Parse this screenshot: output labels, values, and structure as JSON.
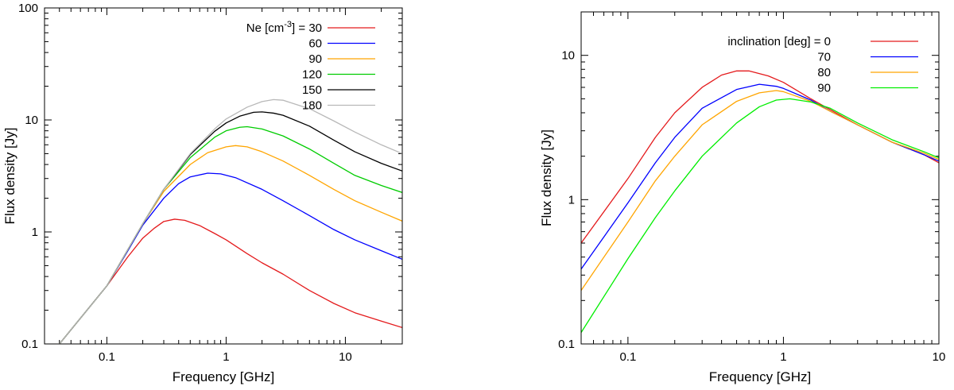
{
  "chart_data": [
    {
      "type": "line",
      "xscale": "log",
      "yscale": "log",
      "xlabel": "Frequency [GHz]",
      "ylabel": "Flux density [Jy]",
      "xlim": [
        0.03,
        30
      ],
      "ylim": [
        0.1,
        100
      ],
      "xticks": [
        {
          "v": 0.1,
          "label": "0.1"
        },
        {
          "v": 1,
          "label": "1"
        },
        {
          "v": 10,
          "label": "10"
        }
      ],
      "yticks": [
        {
          "v": 0.1,
          "label": "0.1"
        },
        {
          "v": 1,
          "label": "1"
        },
        {
          "v": 10,
          "label": "10"
        },
        {
          "v": 100,
          "label": "100"
        }
      ],
      "legend": {
        "prefix": "Ne [cm",
        "sup": "-3",
        "suffix": "] = ",
        "placement": "top-right"
      },
      "series": [
        {
          "name": "30",
          "color": "#e41a1c",
          "points": [
            [
              0.04,
              0.1
            ],
            [
              0.1,
              0.33
            ],
            [
              0.15,
              0.6
            ],
            [
              0.2,
              0.88
            ],
            [
              0.25,
              1.08
            ],
            [
              0.3,
              1.24
            ],
            [
              0.37,
              1.3
            ],
            [
              0.45,
              1.27
            ],
            [
              0.6,
              1.14
            ],
            [
              0.8,
              0.97
            ],
            [
              1,
              0.85
            ],
            [
              1.5,
              0.64
            ],
            [
              2,
              0.53
            ],
            [
              3,
              0.42
            ],
            [
              5,
              0.3
            ],
            [
              8,
              0.23
            ],
            [
              12,
              0.19
            ],
            [
              20,
              0.16
            ],
            [
              30,
              0.14
            ]
          ]
        },
        {
          "name": "60",
          "color": "#0000ff",
          "points": [
            [
              0.04,
              0.1
            ],
            [
              0.1,
              0.33
            ],
            [
              0.15,
              0.68
            ],
            [
              0.2,
              1.15
            ],
            [
              0.3,
              2.0
            ],
            [
              0.4,
              2.7
            ],
            [
              0.5,
              3.1
            ],
            [
              0.7,
              3.35
            ],
            [
              0.9,
              3.3
            ],
            [
              1.2,
              3.05
            ],
            [
              2,
              2.4
            ],
            [
              3,
              1.9
            ],
            [
              5,
              1.4
            ],
            [
              8,
              1.05
            ],
            [
              12,
              0.85
            ],
            [
              20,
              0.68
            ],
            [
              30,
              0.57
            ]
          ]
        },
        {
          "name": "90",
          "color": "#ffa500",
          "points": [
            [
              0.04,
              0.1
            ],
            [
              0.1,
              0.33
            ],
            [
              0.2,
              1.18
            ],
            [
              0.3,
              2.3
            ],
            [
              0.5,
              4.0
            ],
            [
              0.7,
              5.1
            ],
            [
              1,
              5.75
            ],
            [
              1.2,
              5.9
            ],
            [
              1.5,
              5.75
            ],
            [
              2,
              5.2
            ],
            [
              3,
              4.3
            ],
            [
              5,
              3.2
            ],
            [
              8,
              2.4
            ],
            [
              12,
              1.9
            ],
            [
              20,
              1.5
            ],
            [
              30,
              1.25
            ]
          ]
        },
        {
          "name": "120",
          "color": "#00cc00",
          "points": [
            [
              0.04,
              0.1
            ],
            [
              0.1,
              0.33
            ],
            [
              0.2,
              1.18
            ],
            [
              0.3,
              2.4
            ],
            [
              0.5,
              4.6
            ],
            [
              0.8,
              7.0
            ],
            [
              1,
              8.0
            ],
            [
              1.3,
              8.6
            ],
            [
              1.5,
              8.7
            ],
            [
              2,
              8.3
            ],
            [
              3,
              7.2
            ],
            [
              5,
              5.5
            ],
            [
              8,
              4.1
            ],
            [
              12,
              3.2
            ],
            [
              20,
              2.6
            ],
            [
              30,
              2.25
            ]
          ]
        },
        {
          "name": "150",
          "color": "#000000",
          "points": [
            [
              0.04,
              0.1
            ],
            [
              0.1,
              0.33
            ],
            [
              0.2,
              1.18
            ],
            [
              0.3,
              2.4
            ],
            [
              0.5,
              4.9
            ],
            [
              0.8,
              7.9
            ],
            [
              1,
              9.4
            ],
            [
              1.3,
              10.8
            ],
            [
              1.7,
              11.7
            ],
            [
              2,
              11.8
            ],
            [
              2.5,
              11.5
            ],
            [
              3,
              11.0
            ],
            [
              5,
              8.8
            ],
            [
              8,
              6.6
            ],
            [
              12,
              5.2
            ],
            [
              20,
              4.1
            ],
            [
              30,
              3.5
            ]
          ]
        },
        {
          "name": "180",
          "color": "#b8b8b8",
          "points": [
            [
              0.04,
              0.1
            ],
            [
              0.1,
              0.33
            ],
            [
              0.2,
              1.18
            ],
            [
              0.3,
              2.4
            ],
            [
              0.5,
              5.0
            ],
            [
              0.8,
              8.3
            ],
            [
              1,
              10.2
            ],
            [
              1.5,
              13.0
            ],
            [
              2,
              14.6
            ],
            [
              2.5,
              15.2
            ],
            [
              3,
              15.0
            ],
            [
              5,
              12.6
            ],
            [
              8,
              9.8
            ],
            [
              12,
              7.8
            ],
            [
              20,
              6.0
            ],
            [
              30,
              5.0
            ]
          ]
        }
      ]
    },
    {
      "type": "line",
      "xscale": "log",
      "yscale": "log",
      "xlabel": "Frequency [GHz]",
      "ylabel": "Flux density [Jy]",
      "xlim": [
        0.05,
        10
      ],
      "ylim": [
        0.1,
        20
      ],
      "xticks": [
        {
          "v": 0.1,
          "label": "0.1"
        },
        {
          "v": 1,
          "label": "1"
        },
        {
          "v": 10,
          "label": "10"
        }
      ],
      "yticks": [
        {
          "v": 0.1,
          "label": "0.1"
        },
        {
          "v": 1,
          "label": "1"
        },
        {
          "v": 10,
          "label": "10"
        }
      ],
      "legend": {
        "prefix": "inclination [deg] = ",
        "sup": "",
        "suffix": "",
        "placement": "top-right"
      },
      "series": [
        {
          "name": "0",
          "color": "#e41a1c",
          "points": [
            [
              0.05,
              0.5
            ],
            [
              0.1,
              1.4
            ],
            [
              0.15,
              2.7
            ],
            [
              0.2,
              4.0
            ],
            [
              0.3,
              6.0
            ],
            [
              0.4,
              7.3
            ],
            [
              0.5,
              7.8
            ],
            [
              0.6,
              7.8
            ],
            [
              0.8,
              7.2
            ],
            [
              1,
              6.5
            ],
            [
              1.5,
              5.0
            ],
            [
              2,
              4.2
            ],
            [
              3,
              3.3
            ],
            [
              5,
              2.5
            ],
            [
              8,
              2.05
            ],
            [
              10,
              1.8
            ]
          ]
        },
        {
          "name": "70",
          "color": "#0000ff",
          "points": [
            [
              0.05,
              0.33
            ],
            [
              0.1,
              0.95
            ],
            [
              0.15,
              1.8
            ],
            [
              0.2,
              2.7
            ],
            [
              0.3,
              4.3
            ],
            [
              0.5,
              5.8
            ],
            [
              0.7,
              6.3
            ],
            [
              0.9,
              6.1
            ],
            [
              1,
              5.9
            ],
            [
              1.5,
              4.9
            ],
            [
              2,
              4.1
            ],
            [
              3,
              3.3
            ],
            [
              5,
              2.5
            ],
            [
              8,
              2.05
            ],
            [
              10,
              1.85
            ]
          ]
        },
        {
          "name": "80",
          "color": "#ffa500",
          "points": [
            [
              0.05,
              0.235
            ],
            [
              0.1,
              0.7
            ],
            [
              0.15,
              1.35
            ],
            [
              0.2,
              2.0
            ],
            [
              0.3,
              3.3
            ],
            [
              0.5,
              4.8
            ],
            [
              0.7,
              5.5
            ],
            [
              0.9,
              5.7
            ],
            [
              1,
              5.6
            ],
            [
              1.5,
              4.8
            ],
            [
              2,
              4.1
            ],
            [
              3,
              3.3
            ],
            [
              5,
              2.5
            ],
            [
              8,
              2.1
            ],
            [
              10,
              1.9
            ]
          ]
        },
        {
          "name": "90",
          "color": "#00ee00",
          "points": [
            [
              0.05,
              0.12
            ],
            [
              0.1,
              0.39
            ],
            [
              0.15,
              0.75
            ],
            [
              0.2,
              1.15
            ],
            [
              0.3,
              2.0
            ],
            [
              0.5,
              3.4
            ],
            [
              0.7,
              4.4
            ],
            [
              0.9,
              4.9
            ],
            [
              1.1,
              5.0
            ],
            [
              1.5,
              4.75
            ],
            [
              2,
              4.3
            ],
            [
              3,
              3.4
            ],
            [
              5,
              2.6
            ],
            [
              8,
              2.15
            ],
            [
              10,
              1.95
            ]
          ]
        }
      ]
    }
  ]
}
